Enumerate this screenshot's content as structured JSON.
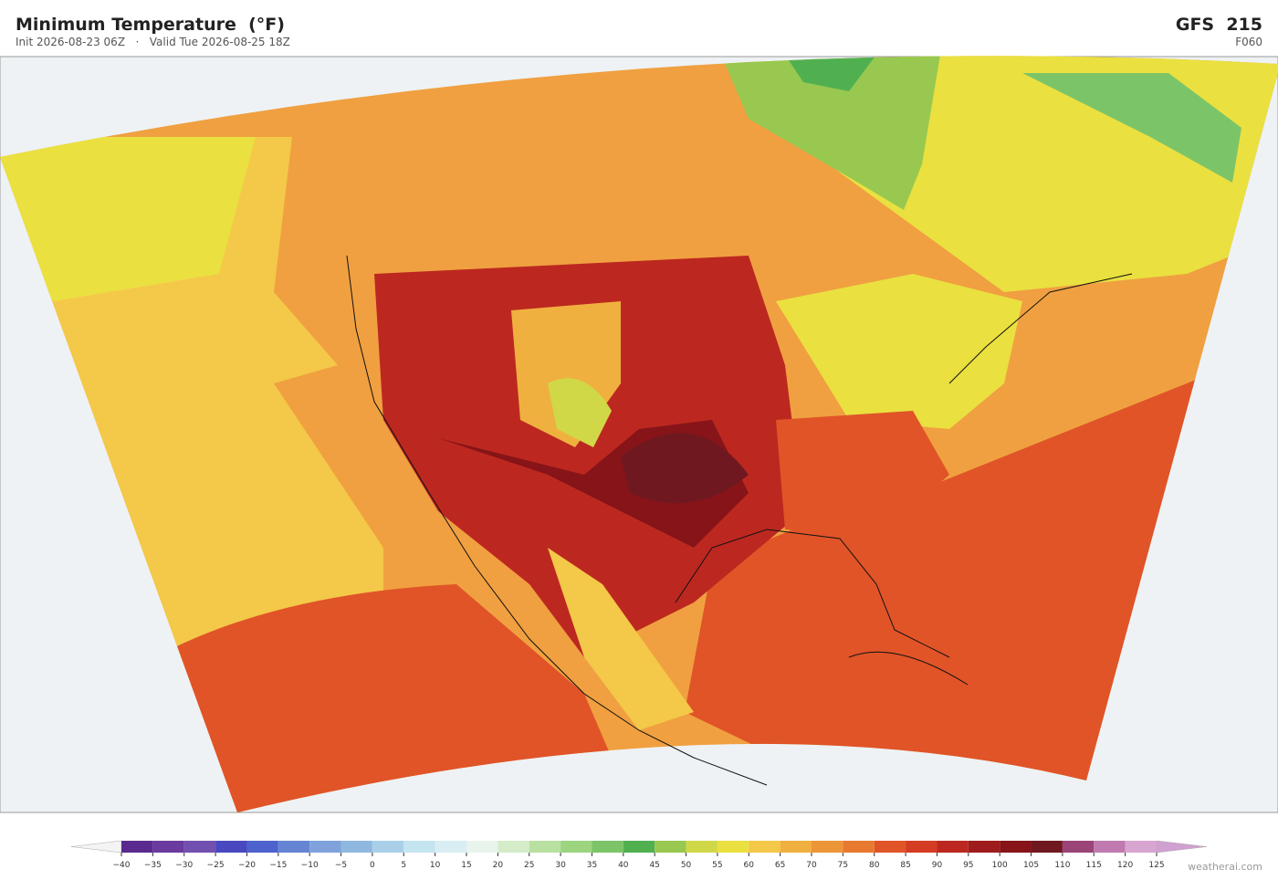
{
  "header": {
    "title": "Minimum Temperature  (°F)",
    "init": "Init 2026-08-23 06Z",
    "separator": "·",
    "valid": "Valid Tue 2026-08-25 18Z",
    "model": "GFS  215",
    "forecast_hour": "F060"
  },
  "colorbar": {
    "under_color": "#f4f4f4",
    "over_color": "#d0a0d0",
    "colors": [
      "#5b2a8e",
      "#6a3a9e",
      "#7250b0",
      "#4a48c0",
      "#4d62cc",
      "#6684d4",
      "#7fa2dc",
      "#8fb8e0",
      "#a9d0e8",
      "#c4e4f0",
      "#d8eef2",
      "#e8f4ec",
      "#d4ecc8",
      "#b8e0a0",
      "#9cd480",
      "#7cc468",
      "#50b050",
      "#98c850",
      "#d0d848",
      "#eae040",
      "#f4c848",
      "#f0b040",
      "#ec9638",
      "#e87a30",
      "#e05428",
      "#d43c24",
      "#bc2820",
      "#9e1c1c",
      "#861418",
      "#701820",
      "#9a4478",
      "#c07ab0",
      "#d8a4d0"
    ],
    "ticks": [
      {
        "value": -40,
        "label": "−40"
      },
      {
        "value": -35,
        "label": "−35"
      },
      {
        "value": -30,
        "label": "−30"
      },
      {
        "value": -25,
        "label": "−25"
      },
      {
        "value": -20,
        "label": "−20"
      },
      {
        "value": -15,
        "label": "−15"
      },
      {
        "value": -10,
        "label": "−10"
      },
      {
        "value": -5,
        "label": "−5"
      },
      0,
      5,
      10,
      15,
      20,
      25,
      30,
      35,
      40,
      45,
      50,
      55,
      60,
      65,
      70,
      75,
      80,
      85,
      90,
      95,
      100,
      105,
      110,
      115,
      120,
      125
    ]
  },
  "watermark": "weatherai.com"
}
